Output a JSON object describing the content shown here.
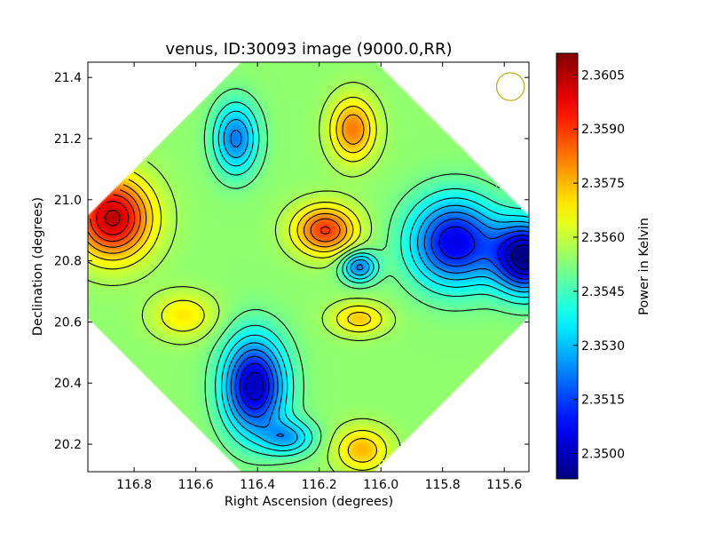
{
  "chart_data": {
    "type": "heatmap",
    "title": "venus, ID:30093 image (9000.0,RR)",
    "xlabel": "Right Ascension (degrees)",
    "ylabel": "Declination (degrees)",
    "xlim": [
      116.95,
      115.52
    ],
    "ylim": [
      20.11,
      21.45
    ],
    "x_ticks": [
      116.8,
      116.6,
      116.4,
      116.2,
      116.0,
      115.8,
      115.6
    ],
    "x_tick_labels": [
      "116.8",
      "116.6",
      "116.4",
      "116.2",
      "116.0",
      "115.8",
      "115.6"
    ],
    "y_ticks": [
      20.2,
      20.4,
      20.6,
      20.8,
      21.0,
      21.2,
      21.4
    ],
    "y_tick_labels": [
      "20.2",
      "20.4",
      "20.6",
      "20.8",
      "21.0",
      "21.2",
      "21.4"
    ],
    "colorbar": {
      "label": "Power in Kelvin",
      "min": 2.3493,
      "max": 2.3611,
      "colormap": "jet",
      "ticks": [
        2.35,
        2.3515,
        2.353,
        2.3545,
        2.356,
        2.3575,
        2.359,
        2.3605
      ],
      "tick_labels": [
        "2.3500",
        "2.3515",
        "2.3530",
        "2.3545",
        "2.3560",
        "2.3575",
        "2.3590",
        "2.3605"
      ]
    },
    "map_extent": {
      "center": [
        116.235,
        20.78
      ],
      "note": "diamond-shaped (rotated square) mapped region"
    },
    "features": [
      {
        "x": 116.87,
        "y": 20.94,
        "value": 2.3604,
        "sx": 0.085,
        "sy": 0.09
      },
      {
        "x": 116.18,
        "y": 20.9,
        "value": 2.359,
        "sx": 0.07,
        "sy": 0.055
      },
      {
        "x": 116.09,
        "y": 21.23,
        "value": 2.3582,
        "sx": 0.05,
        "sy": 0.07
      },
      {
        "x": 116.07,
        "y": 20.61,
        "value": 2.3573,
        "sx": 0.06,
        "sy": 0.035
      },
      {
        "x": 116.06,
        "y": 20.18,
        "value": 2.3575,
        "sx": 0.06,
        "sy": 0.05
      },
      {
        "x": 116.64,
        "y": 20.62,
        "value": 2.3569,
        "sx": 0.07,
        "sy": 0.05
      },
      {
        "x": 116.41,
        "y": 20.39,
        "value": 2.35,
        "sx": 0.07,
        "sy": 0.11
      },
      {
        "x": 115.76,
        "y": 20.86,
        "value": 2.3505,
        "sx": 0.1,
        "sy": 0.1
      },
      {
        "x": 115.53,
        "y": 20.81,
        "value": 2.3494,
        "sx": 0.07,
        "sy": 0.08
      },
      {
        "x": 116.47,
        "y": 21.2,
        "value": 2.3522,
        "sx": 0.05,
        "sy": 0.08
      },
      {
        "x": 116.07,
        "y": 20.78,
        "value": 2.3522,
        "sx": 0.04,
        "sy": 0.035
      },
      {
        "x": 116.3,
        "y": 20.22,
        "value": 2.353,
        "sx": 0.06,
        "sy": 0.04
      }
    ],
    "background_value": 2.3554,
    "beam": {
      "x": 115.58,
      "y": 21.37,
      "radius_deg": 0.045,
      "color": "#b5b51e"
    },
    "grid": false
  }
}
